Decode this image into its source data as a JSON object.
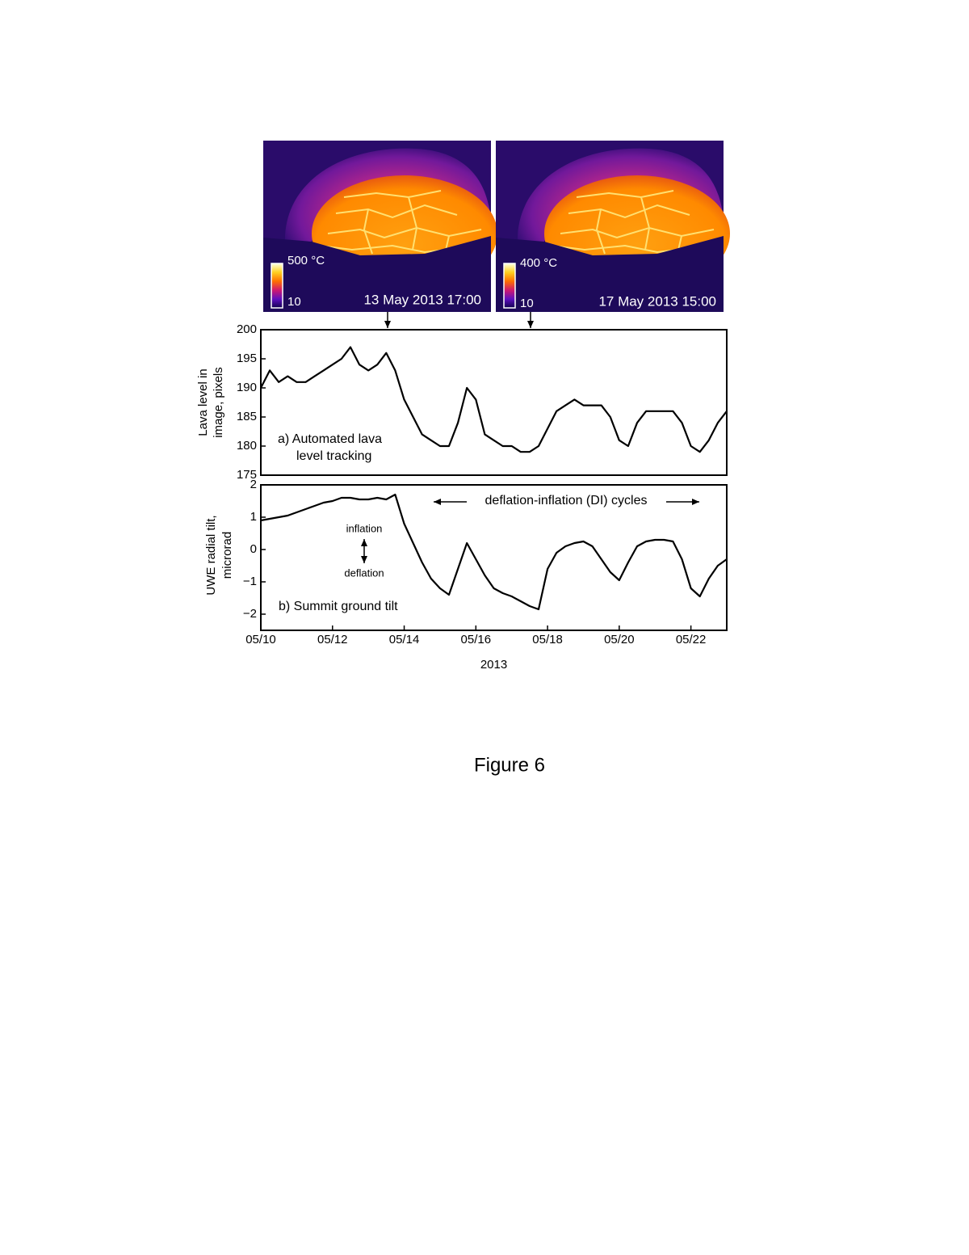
{
  "images": [
    {
      "colorbar_max": "500 °C",
      "colorbar_min": "10",
      "caption": "13 May 2013 17:00"
    },
    {
      "colorbar_max": "400 °C",
      "colorbar_min": "10",
      "caption": "17 May 2013 15:00"
    }
  ],
  "chart_data": [
    {
      "type": "line",
      "ylabel": [
        "Lava level in",
        "image, pixels"
      ],
      "annotations": [
        "a)  Automated lava",
        "level tracking"
      ],
      "x": [
        "2013-05-10T00:00",
        "2013-05-10T06:00",
        "2013-05-10T12:00",
        "2013-05-10T18:00",
        "2013-05-11T00:00",
        "2013-05-11T06:00",
        "2013-05-11T12:00",
        "2013-05-11T18:00",
        "2013-05-12T00:00",
        "2013-05-12T06:00",
        "2013-05-12T12:00",
        "2013-05-12T18:00",
        "2013-05-13T00:00",
        "2013-05-13T06:00",
        "2013-05-13T12:00",
        "2013-05-13T18:00",
        "2013-05-14T00:00",
        "2013-05-14T06:00",
        "2013-05-14T12:00",
        "2013-05-14T18:00",
        "2013-05-15T00:00",
        "2013-05-15T06:00",
        "2013-05-15T12:00",
        "2013-05-15T18:00",
        "2013-05-16T00:00",
        "2013-05-16T06:00",
        "2013-05-16T12:00",
        "2013-05-16T18:00",
        "2013-05-17T00:00",
        "2013-05-17T06:00",
        "2013-05-17T12:00",
        "2013-05-17T18:00",
        "2013-05-18T00:00",
        "2013-05-18T06:00",
        "2013-05-18T12:00",
        "2013-05-18T18:00",
        "2013-05-19T00:00",
        "2013-05-19T06:00",
        "2013-05-19T12:00",
        "2013-05-19T18:00",
        "2013-05-20T00:00",
        "2013-05-20T06:00",
        "2013-05-20T12:00",
        "2013-05-20T18:00",
        "2013-05-21T00:00",
        "2013-05-21T06:00",
        "2013-05-21T12:00",
        "2013-05-21T18:00",
        "2013-05-22T00:00",
        "2013-05-22T06:00",
        "2013-05-22T12:00",
        "2013-05-22T18:00",
        "2013-05-23T00:00"
      ],
      "series": [
        {
          "color": "#000000",
          "values": [
            190,
            193,
            191,
            192,
            191,
            191,
            192,
            193,
            194,
            195,
            197,
            194,
            193,
            194,
            196,
            193,
            188,
            185,
            182,
            181,
            180,
            180,
            184,
            190,
            188,
            182,
            181,
            180,
            180,
            179,
            179,
            180,
            183,
            186,
            187,
            188,
            187,
            187,
            187,
            185,
            181,
            180,
            184,
            186,
            186,
            186,
            186,
            184,
            180,
            179,
            181,
            184,
            186
          ]
        }
      ],
      "xlim": [
        "2013-05-10T00:00",
        "2013-05-23T00:00"
      ],
      "ylim": [
        175,
        200
      ],
      "yticks": [
        175,
        180,
        185,
        190,
        195,
        200
      ]
    },
    {
      "type": "line",
      "ylabel": [
        "UWE radial tilt,",
        "microrad"
      ],
      "xlabel": "2013",
      "annotations": [
        "b)  Summit ground tilt",
        "inflation",
        "deflation",
        "deflation-inflation (DI) cycles"
      ],
      "x": [
        "2013-05-10T00:00",
        "2013-05-10T06:00",
        "2013-05-10T12:00",
        "2013-05-10T18:00",
        "2013-05-11T00:00",
        "2013-05-11T06:00",
        "2013-05-11T12:00",
        "2013-05-11T18:00",
        "2013-05-12T00:00",
        "2013-05-12T06:00",
        "2013-05-12T12:00",
        "2013-05-12T18:00",
        "2013-05-13T00:00",
        "2013-05-13T06:00",
        "2013-05-13T12:00",
        "2013-05-13T18:00",
        "2013-05-14T00:00",
        "2013-05-14T06:00",
        "2013-05-14T12:00",
        "2013-05-14T18:00",
        "2013-05-15T00:00",
        "2013-05-15T06:00",
        "2013-05-15T12:00",
        "2013-05-15T18:00",
        "2013-05-16T00:00",
        "2013-05-16T06:00",
        "2013-05-16T12:00",
        "2013-05-16T18:00",
        "2013-05-17T00:00",
        "2013-05-17T06:00",
        "2013-05-17T12:00",
        "2013-05-17T18:00",
        "2013-05-18T00:00",
        "2013-05-18T06:00",
        "2013-05-18T12:00",
        "2013-05-18T18:00",
        "2013-05-19T00:00",
        "2013-05-19T06:00",
        "2013-05-19T12:00",
        "2013-05-19T18:00",
        "2013-05-20T00:00",
        "2013-05-20T06:00",
        "2013-05-20T12:00",
        "2013-05-20T18:00",
        "2013-05-21T00:00",
        "2013-05-21T06:00",
        "2013-05-21T12:00",
        "2013-05-21T18:00",
        "2013-05-22T00:00",
        "2013-05-22T06:00",
        "2013-05-22T12:00",
        "2013-05-22T18:00",
        "2013-05-23T00:00"
      ],
      "series": [
        {
          "color": "#000000",
          "values": [
            0.9,
            0.95,
            1.0,
            1.05,
            1.15,
            1.25,
            1.35,
            1.45,
            1.5,
            1.6,
            1.6,
            1.55,
            1.55,
            1.6,
            1.55,
            1.7,
            0.8,
            0.2,
            -0.4,
            -0.9,
            -1.2,
            -1.4,
            -0.6,
            0.2,
            -0.3,
            -0.8,
            -1.2,
            -1.35,
            -1.45,
            -1.6,
            -1.75,
            -1.85,
            -0.6,
            -0.1,
            0.1,
            0.2,
            0.25,
            0.1,
            -0.3,
            -0.7,
            -0.95,
            -0.4,
            0.1,
            0.25,
            0.3,
            0.3,
            0.25,
            -0.3,
            -1.2,
            -1.45,
            -0.9,
            -0.5,
            -0.3
          ]
        }
      ],
      "xlim": [
        "2013-05-10T00:00",
        "2013-05-23T00:00"
      ],
      "xticks": [
        {
          "value": "2013-05-10T00:00",
          "label": "05/10"
        },
        {
          "value": "2013-05-12T00:00",
          "label": "05/12"
        },
        {
          "value": "2013-05-14T00:00",
          "label": "05/14"
        },
        {
          "value": "2013-05-16T00:00",
          "label": "05/16"
        },
        {
          "value": "2013-05-18T00:00",
          "label": "05/18"
        },
        {
          "value": "2013-05-20T00:00",
          "label": "05/20"
        },
        {
          "value": "2013-05-22T00:00",
          "label": "05/22"
        }
      ],
      "ylim": [
        -2.5,
        2
      ],
      "yticks": [
        {
          "value": -2,
          "label": "−2"
        },
        {
          "value": -1,
          "label": "−1"
        },
        0,
        1,
        2
      ]
    }
  ],
  "figure_label": "Figure 6"
}
